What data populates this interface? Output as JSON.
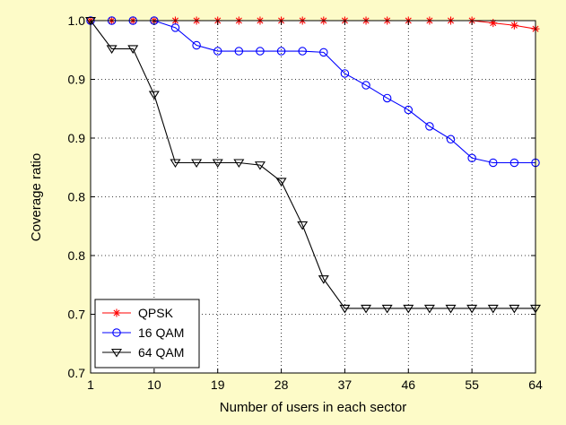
{
  "chart_data": {
    "type": "line",
    "title": "",
    "xlabel": "Number of users in each sector",
    "ylabel": "Coverage ratio",
    "xlim": [
      1,
      64
    ],
    "ylim": [
      0.7,
      1.0
    ],
    "x_ticks": [
      1,
      10,
      19,
      28,
      37,
      46,
      55,
      64
    ],
    "y_ticks": [
      0.7,
      0.75,
      0.8,
      0.85,
      0.9,
      0.95,
      1.0
    ],
    "y_tick_labels": [
      "0.7",
      "0.7",
      "0.8",
      "0.8",
      "0.9",
      "0.9",
      "1.0"
    ],
    "grid": true,
    "legend_position": "bottom-left",
    "x": [
      1,
      4,
      7,
      10,
      13,
      16,
      19,
      22,
      25,
      28,
      31,
      34,
      37,
      40,
      43,
      46,
      49,
      52,
      55,
      58,
      61,
      64
    ],
    "series": [
      {
        "name": "QPSK",
        "color": "#ff0000",
        "marker": "asterisk",
        "values": [
          1.0,
          1.0,
          1.0,
          1.0,
          1.0,
          1.0,
          1.0,
          1.0,
          1.0,
          1.0,
          1.0,
          1.0,
          1.0,
          1.0,
          1.0,
          1.0,
          1.0,
          1.0,
          1.0,
          0.998,
          0.996,
          0.993
        ]
      },
      {
        "name": "16 QAM",
        "color": "#0000ff",
        "marker": "circle",
        "values": [
          1.0,
          1.0,
          1.0,
          1.0,
          0.994,
          0.979,
          0.974,
          0.974,
          0.974,
          0.974,
          0.974,
          0.973,
          0.955,
          0.945,
          0.934,
          0.924,
          0.91,
          0.899,
          0.883,
          0.879,
          0.879,
          0.879
        ]
      },
      {
        "name": "64 QAM",
        "color": "#000000",
        "marker": "triangle-down",
        "values": [
          1.0,
          0.976,
          0.976,
          0.937,
          0.879,
          0.879,
          0.879,
          0.879,
          0.877,
          0.863,
          0.826,
          0.78,
          0.755,
          0.755,
          0.755,
          0.755,
          0.755,
          0.755,
          0.755,
          0.755,
          0.755,
          0.755
        ]
      }
    ]
  }
}
